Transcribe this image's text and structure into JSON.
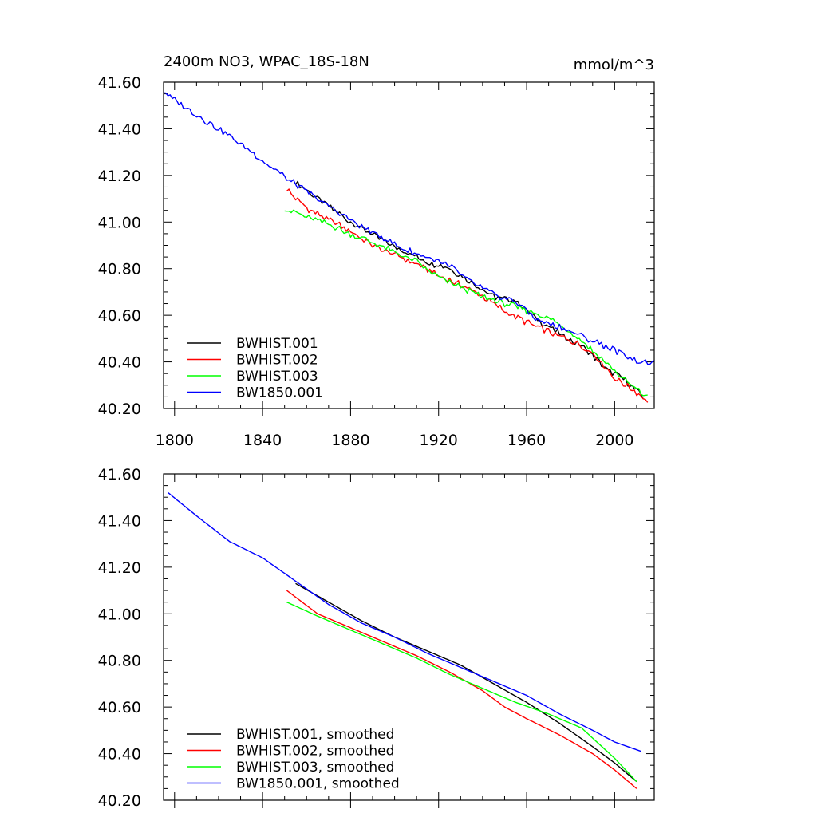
{
  "chart_data": [
    {
      "type": "line",
      "title": "2400m NO3, WPAC_18S-18N",
      "units": "mmol/m^3",
      "xlim": [
        1795,
        2018
      ],
      "ylim": [
        40.2,
        41.6
      ],
      "x_ticks": [
        1800,
        1840,
        1880,
        1920,
        1960,
        2000
      ],
      "x_tick_labels": [
        "1800",
        "1840",
        "1880",
        "1920",
        "1960",
        "2000"
      ],
      "y_ticks": [
        40.2,
        40.4,
        40.6,
        40.8,
        41.0,
        41.2,
        41.4,
        41.6
      ],
      "y_tick_labels": [
        "40.20",
        "40.40",
        "40.60",
        "40.80",
        "41.00",
        "41.20",
        "41.40",
        "41.60"
      ],
      "legend_position": "bottom-left",
      "series": [
        {
          "name": "BWHIST.001",
          "color": "#000000",
          "noisy": true,
          "x": [
            1855,
            1865,
            1880,
            1895,
            1905,
            1915,
            1925,
            1935,
            1945,
            1955,
            1965,
            1975,
            1985,
            1995,
            2005,
            2013
          ],
          "y": [
            41.17,
            41.1,
            41.0,
            40.92,
            40.87,
            40.83,
            40.8,
            40.74,
            40.68,
            40.66,
            40.58,
            40.52,
            40.47,
            40.38,
            40.32,
            40.25
          ]
        },
        {
          "name": "BWHIST.002",
          "color": "#ff0000",
          "noisy": true,
          "x": [
            1851,
            1860,
            1870,
            1880,
            1890,
            1900,
            1910,
            1920,
            1930,
            1940,
            1950,
            1960,
            1970,
            1980,
            1990,
            2000,
            2010,
            2015
          ],
          "y": [
            41.14,
            41.06,
            41.01,
            40.96,
            40.9,
            40.86,
            40.82,
            40.77,
            40.73,
            40.68,
            40.62,
            40.57,
            40.53,
            40.49,
            40.44,
            40.33,
            40.27,
            40.23
          ]
        },
        {
          "name": "BWHIST.003",
          "color": "#00ff00",
          "noisy": true,
          "x": [
            1850,
            1860,
            1870,
            1880,
            1890,
            1900,
            1910,
            1920,
            1930,
            1940,
            1950,
            1960,
            1970,
            1980,
            1990,
            2000,
            2010,
            2015
          ],
          "y": [
            41.06,
            41.02,
            40.99,
            40.95,
            40.91,
            40.87,
            40.83,
            40.76,
            40.72,
            40.68,
            40.65,
            40.62,
            40.59,
            40.53,
            40.45,
            40.36,
            40.28,
            40.25
          ]
        },
        {
          "name": "BW1850.001",
          "color": "#0000ff",
          "noisy": true,
          "x": [
            1795,
            1805,
            1815,
            1825,
            1835,
            1845,
            1855,
            1865,
            1875,
            1885,
            1895,
            1905,
            1915,
            1925,
            1935,
            1945,
            1955,
            1965,
            1975,
            1985,
            1995,
            2005,
            2012,
            2018
          ],
          "y": [
            41.56,
            41.49,
            41.43,
            41.37,
            41.3,
            41.23,
            41.16,
            41.1,
            41.04,
            40.98,
            40.93,
            40.88,
            40.85,
            40.81,
            40.74,
            40.69,
            40.66,
            40.58,
            40.55,
            40.51,
            40.47,
            40.43,
            40.4,
            40.39
          ]
        }
      ]
    },
    {
      "type": "line",
      "xlim": [
        1795,
        2018
      ],
      "ylim": [
        40.2,
        41.6
      ],
      "y_ticks": [
        40.2,
        40.4,
        40.6,
        40.8,
        41.0,
        41.2,
        41.4,
        41.6
      ],
      "y_tick_labels": [
        "40.20",
        "40.40",
        "40.60",
        "40.80",
        "41.00",
        "41.20",
        "41.40",
        "41.60"
      ],
      "x_ticks": [
        1800,
        1840,
        1880,
        1920,
        1960,
        2000
      ],
      "legend_position": "bottom-left",
      "series": [
        {
          "name": "BWHIST.001, smoothed",
          "color": "#000000",
          "noisy": false,
          "x": [
            1855,
            1870,
            1885,
            1900,
            1915,
            1930,
            1945,
            1960,
            1975,
            1990,
            2000,
            2010
          ],
          "y": [
            41.13,
            41.05,
            40.97,
            40.9,
            40.84,
            40.78,
            40.7,
            40.62,
            40.53,
            40.43,
            40.36,
            40.28
          ]
        },
        {
          "name": "BWHIST.002, smoothed",
          "color": "#ff0000",
          "noisy": false,
          "x": [
            1851,
            1865,
            1880,
            1895,
            1910,
            1925,
            1940,
            1950,
            1960,
            1975,
            1990,
            2000,
            2010
          ],
          "y": [
            41.1,
            41.0,
            40.94,
            40.88,
            40.82,
            40.75,
            40.67,
            40.6,
            40.55,
            40.48,
            40.4,
            40.33,
            40.25
          ]
        },
        {
          "name": "BWHIST.003, smoothed",
          "color": "#00ff00",
          "noisy": false,
          "x": [
            1851,
            1865,
            1880,
            1895,
            1910,
            1925,
            1940,
            1955,
            1970,
            1985,
            2000,
            2010
          ],
          "y": [
            41.05,
            40.99,
            40.93,
            40.87,
            40.81,
            40.74,
            40.68,
            40.62,
            40.57,
            40.51,
            40.38,
            40.28
          ]
        },
        {
          "name": "BW1850.001, smoothed",
          "color": "#0000ff",
          "noisy": false,
          "x": [
            1797,
            1810,
            1825,
            1840,
            1855,
            1870,
            1885,
            1900,
            1915,
            1930,
            1945,
            1960,
            1975,
            1990,
            2000,
            2012
          ],
          "y": [
            41.52,
            41.42,
            41.31,
            41.24,
            41.14,
            41.04,
            40.96,
            40.9,
            40.83,
            40.77,
            40.71,
            40.65,
            40.57,
            40.5,
            40.45,
            40.41
          ]
        }
      ]
    }
  ]
}
